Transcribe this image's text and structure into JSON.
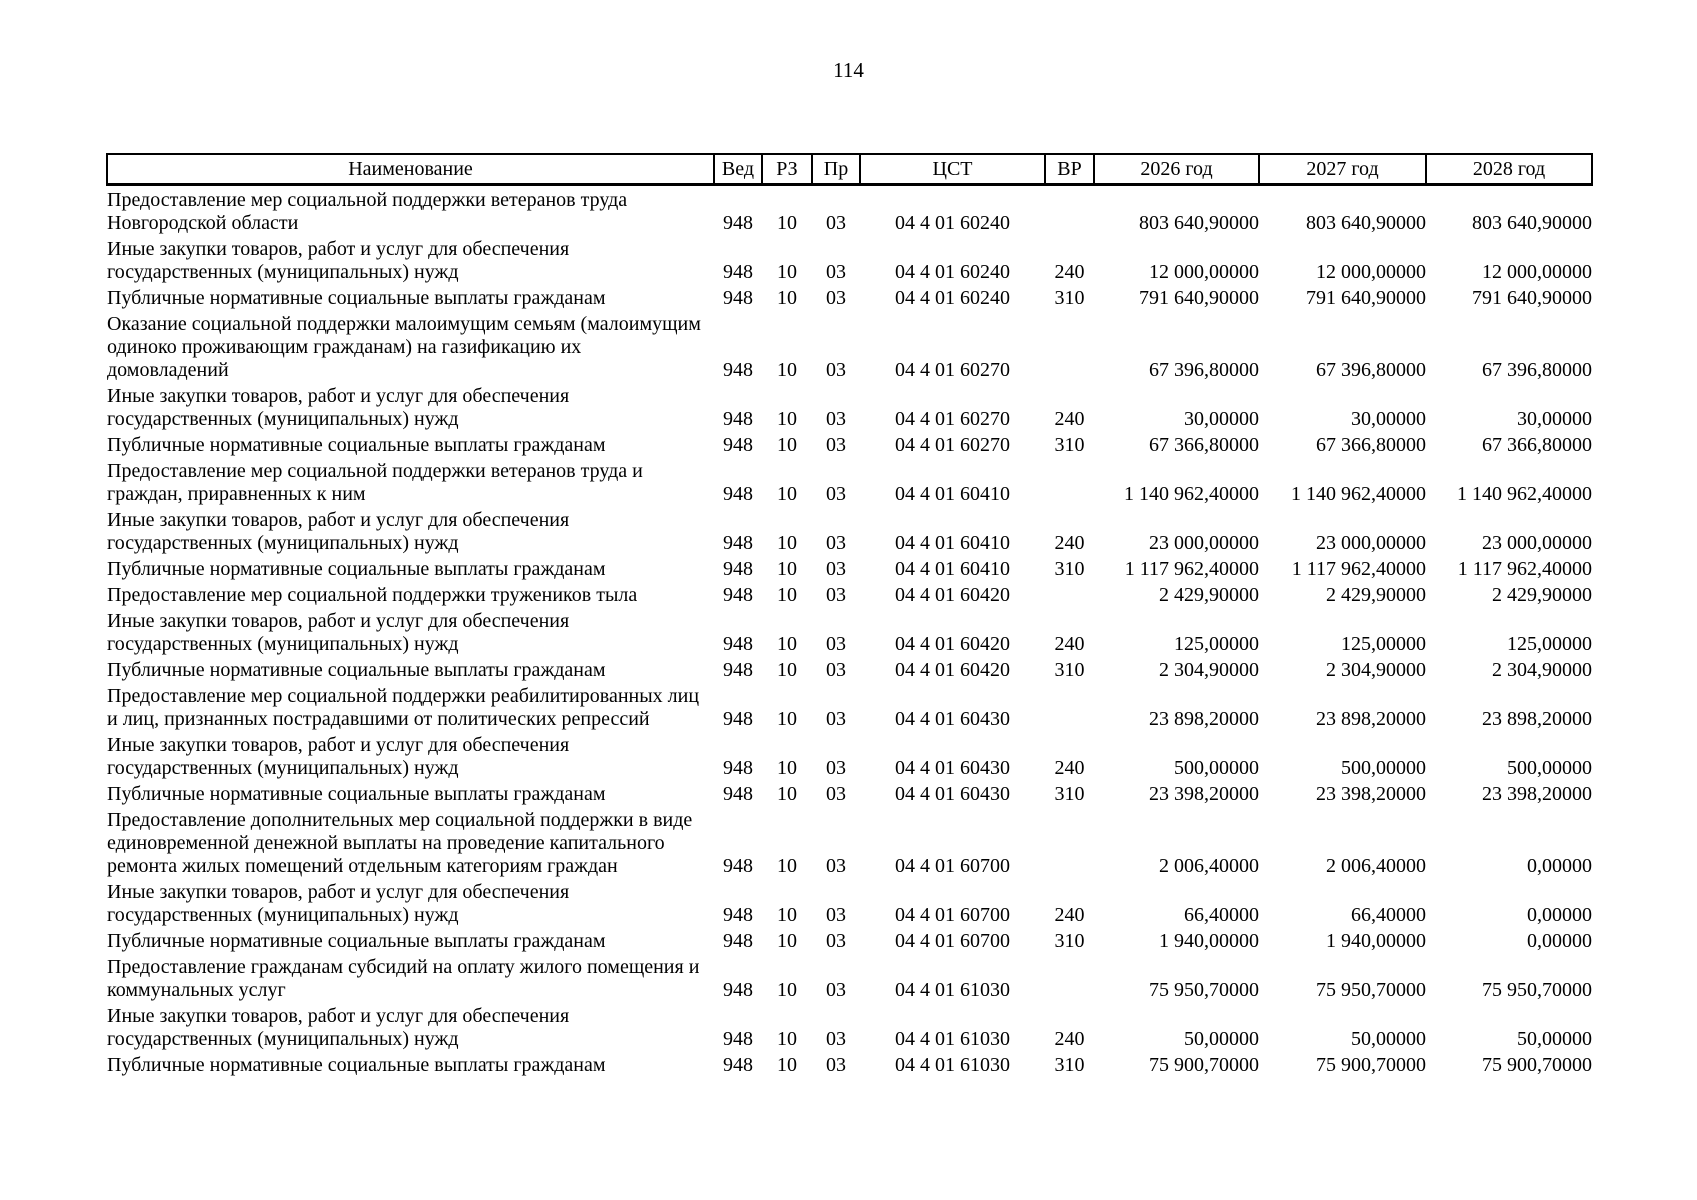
{
  "page": {
    "number": "114"
  },
  "table": {
    "columns": [
      {
        "key": "name",
        "label": "Наименование"
      },
      {
        "key": "ved",
        "label": "Вед"
      },
      {
        "key": "rz",
        "label": "РЗ"
      },
      {
        "key": "pr",
        "label": "Пр"
      },
      {
        "key": "cst",
        "label": "ЦСТ"
      },
      {
        "key": "vr",
        "label": "ВР"
      },
      {
        "key": "y2026",
        "label": "2026 год"
      },
      {
        "key": "y2027",
        "label": "2027 год"
      },
      {
        "key": "y2028",
        "label": "2028 год"
      }
    ],
    "rows": [
      {
        "name": "Предоставление мер социальной поддержки ветеранов труда\nНовгородской области",
        "ved": "948",
        "rz": "10",
        "pr": "03",
        "cst": "04 4 01 60240",
        "vr": "",
        "y2026": "803 640,90000",
        "y2027": "803 640,90000",
        "y2028": "803 640,90000"
      },
      {
        "name": "Иные закупки товаров, работ и услуг для обеспечения\nгосударственных (муниципальных) нужд",
        "ved": "948",
        "rz": "10",
        "pr": "03",
        "cst": "04 4 01 60240",
        "vr": "240",
        "y2026": "12 000,00000",
        "y2027": "12 000,00000",
        "y2028": "12 000,00000"
      },
      {
        "name": "Публичные нормативные социальные выплаты гражданам",
        "ved": "948",
        "rz": "10",
        "pr": "03",
        "cst": "04 4 01 60240",
        "vr": "310",
        "y2026": "791 640,90000",
        "y2027": "791 640,90000",
        "y2028": "791 640,90000"
      },
      {
        "name": "Оказание социальной поддержки малоимущим семьям (малоимущим\nодиноко проживающим гражданам) на газификацию их\nдомовладений",
        "ved": "948",
        "rz": "10",
        "pr": "03",
        "cst": "04 4 01 60270",
        "vr": "",
        "y2026": "67 396,80000",
        "y2027": "67 396,80000",
        "y2028": "67 396,80000"
      },
      {
        "name": "Иные закупки товаров, работ и услуг для обеспечения\nгосударственных (муниципальных) нужд",
        "ved": "948",
        "rz": "10",
        "pr": "03",
        "cst": "04 4 01 60270",
        "vr": "240",
        "y2026": "30,00000",
        "y2027": "30,00000",
        "y2028": "30,00000"
      },
      {
        "name": "Публичные нормативные социальные выплаты гражданам",
        "ved": "948",
        "rz": "10",
        "pr": "03",
        "cst": "04 4 01 60270",
        "vr": "310",
        "y2026": "67 366,80000",
        "y2027": "67 366,80000",
        "y2028": "67 366,80000"
      },
      {
        "name": "Предоставление мер социальной поддержки ветеранов труда и\nграждан, приравненных к ним",
        "ved": "948",
        "rz": "10",
        "pr": "03",
        "cst": "04 4 01 60410",
        "vr": "",
        "y2026": "1 140 962,40000",
        "y2027": "1 140 962,40000",
        "y2028": "1 140 962,40000"
      },
      {
        "name": "Иные закупки товаров, работ и услуг для обеспечения\nгосударственных (муниципальных) нужд",
        "ved": "948",
        "rz": "10",
        "pr": "03",
        "cst": "04 4 01 60410",
        "vr": "240",
        "y2026": "23 000,00000",
        "y2027": "23 000,00000",
        "y2028": "23 000,00000"
      },
      {
        "name": "Публичные нормативные социальные выплаты гражданам",
        "ved": "948",
        "rz": "10",
        "pr": "03",
        "cst": "04 4 01 60410",
        "vr": "310",
        "y2026": "1 117 962,40000",
        "y2027": "1 117 962,40000",
        "y2028": "1 117 962,40000"
      },
      {
        "name": "Предоставление мер социальной поддержки тружеников тыла",
        "ved": "948",
        "rz": "10",
        "pr": "03",
        "cst": "04 4 01 60420",
        "vr": "",
        "y2026": "2 429,90000",
        "y2027": "2 429,90000",
        "y2028": "2 429,90000"
      },
      {
        "name": "Иные закупки товаров, работ и услуг для обеспечения\nгосударственных (муниципальных) нужд",
        "ved": "948",
        "rz": "10",
        "pr": "03",
        "cst": "04 4 01 60420",
        "vr": "240",
        "y2026": "125,00000",
        "y2027": "125,00000",
        "y2028": "125,00000"
      },
      {
        "name": "Публичные нормативные социальные выплаты гражданам",
        "ved": "948",
        "rz": "10",
        "pr": "03",
        "cst": "04 4 01 60420",
        "vr": "310",
        "y2026": "2 304,90000",
        "y2027": "2 304,90000",
        "y2028": "2 304,90000"
      },
      {
        "name": "Предоставление мер социальной поддержки реабилитированных лиц\nи лиц, признанных пострадавшими от политических репрессий",
        "ved": "948",
        "rz": "10",
        "pr": "03",
        "cst": "04 4 01 60430",
        "vr": "",
        "y2026": "23 898,20000",
        "y2027": "23 898,20000",
        "y2028": "23 898,20000"
      },
      {
        "name": "Иные закупки товаров, работ и услуг для обеспечения\nгосударственных (муниципальных) нужд",
        "ved": "948",
        "rz": "10",
        "pr": "03",
        "cst": "04 4 01 60430",
        "vr": "240",
        "y2026": "500,00000",
        "y2027": "500,00000",
        "y2028": "500,00000"
      },
      {
        "name": "Публичные нормативные социальные выплаты гражданам",
        "ved": "948",
        "rz": "10",
        "pr": "03",
        "cst": "04 4 01 60430",
        "vr": "310",
        "y2026": "23 398,20000",
        "y2027": "23 398,20000",
        "y2028": "23 398,20000"
      },
      {
        "name": "Предоставление дополнительных мер социальной поддержки в виде\nединовременной денежной выплаты на проведение капитального\nремонта жилых помещений отдельным категориям граждан",
        "ved": "948",
        "rz": "10",
        "pr": "03",
        "cst": "04 4 01 60700",
        "vr": "",
        "y2026": "2 006,40000",
        "y2027": "2 006,40000",
        "y2028": "0,00000"
      },
      {
        "name": "Иные закупки товаров, работ и услуг для обеспечения\nгосударственных (муниципальных) нужд",
        "ved": "948",
        "rz": "10",
        "pr": "03",
        "cst": "04 4 01 60700",
        "vr": "240",
        "y2026": "66,40000",
        "y2027": "66,40000",
        "y2028": "0,00000"
      },
      {
        "name": "Публичные нормативные социальные выплаты гражданам",
        "ved": "948",
        "rz": "10",
        "pr": "03",
        "cst": "04 4 01 60700",
        "vr": "310",
        "y2026": "1 940,00000",
        "y2027": "1 940,00000",
        "y2028": "0,00000"
      },
      {
        "name": "Предоставление гражданам субсидий на оплату жилого помещения и\nкоммунальных услуг",
        "ved": "948",
        "rz": "10",
        "pr": "03",
        "cst": "04 4 01 61030",
        "vr": "",
        "y2026": "75 950,70000",
        "y2027": "75 950,70000",
        "y2028": "75 950,70000"
      },
      {
        "name": "Иные закупки товаров, работ и услуг для обеспечения\nгосударственных (муниципальных) нужд",
        "ved": "948",
        "rz": "10",
        "pr": "03",
        "cst": "04 4 01 61030",
        "vr": "240",
        "y2026": "50,00000",
        "y2027": "50,00000",
        "y2028": "50,00000"
      },
      {
        "name": "Публичные нормативные социальные выплаты гражданам",
        "ved": "948",
        "rz": "10",
        "pr": "03",
        "cst": "04 4 01 61030",
        "vr": "310",
        "y2026": "75 900,70000",
        "y2027": "75 900,70000",
        "y2028": "75 900,70000"
      }
    ]
  }
}
